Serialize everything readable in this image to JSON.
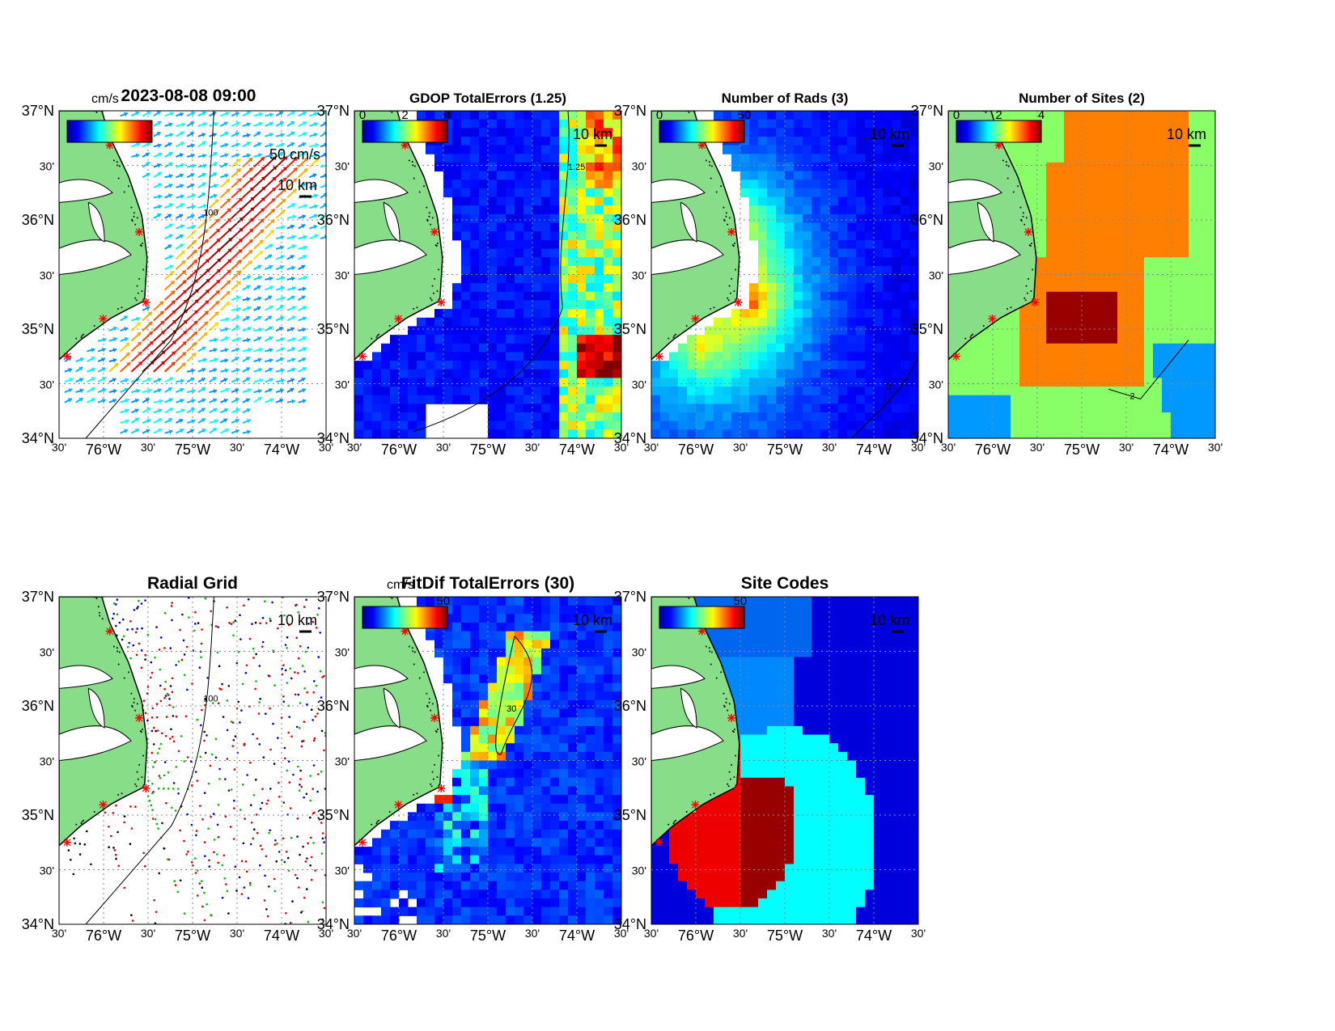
{
  "figure": {
    "timestamp": "2023-08-08 09:00",
    "colors": {
      "land": "#88dd88",
      "coast": "#000000",
      "site_marker": "#ff0000",
      "grid": "#888888"
    },
    "lat_ticks": [
      "37°N",
      "30'",
      "36°N",
      "30'",
      "35°N",
      "30'",
      "34°N"
    ],
    "lon_ticks": [
      "30'",
      "76°W",
      "30'",
      "75°W",
      "30'",
      "74°W",
      "30'"
    ],
    "panels": [
      {
        "id": "total-vectors",
        "title": "",
        "colorbar": {
          "unit": "cm/s",
          "ticks": []
        },
        "scale_labels": [
          "50 cm/s",
          "10 km"
        ],
        "fill": "vectors",
        "contour_label": "100"
      },
      {
        "id": "gdop-total-errors",
        "title": "GDOP TotalErrors (1.25)",
        "colorbar": {
          "unit": "",
          "ticks": [
            "0",
            "2",
            "4"
          ]
        },
        "scale_labels": [
          "10 km"
        ],
        "fill": "gdop",
        "contour_label": "1.25"
      },
      {
        "id": "number-of-rads",
        "title": "Number of Rads (3)",
        "colorbar": {
          "unit": "",
          "ticks": [
            "0",
            "50"
          ]
        },
        "scale_labels": [
          "10 km"
        ],
        "fill": "rads",
        "contour_label": "3"
      },
      {
        "id": "number-of-sites",
        "title": "Number of Sites (2)",
        "colorbar": {
          "unit": "",
          "ticks": [
            "0",
            "2",
            "4"
          ]
        },
        "scale_labels": [
          "10 km"
        ],
        "fill": "sites",
        "contour_label": "2"
      },
      {
        "id": "radial-grid",
        "title": "Radial Grid",
        "colorbar": null,
        "scale_labels": [
          "10 km"
        ],
        "fill": "radialgrid",
        "contour_label": "100"
      },
      {
        "id": "fitdif-total-errors",
        "title": "FitDif TotalErrors (30)",
        "colorbar": {
          "unit": "cm/s",
          "ticks": [
            "50"
          ]
        },
        "scale_labels": [
          "10 km"
        ],
        "fill": "fitdif",
        "contour_label": "30"
      },
      {
        "id": "site-codes",
        "title": "Site Codes",
        "colorbar": {
          "unit": "",
          "ticks": [
            "50"
          ]
        },
        "scale_labels": [
          "10 km"
        ],
        "fill": "sitecodes",
        "contour_label": ""
      }
    ]
  }
}
